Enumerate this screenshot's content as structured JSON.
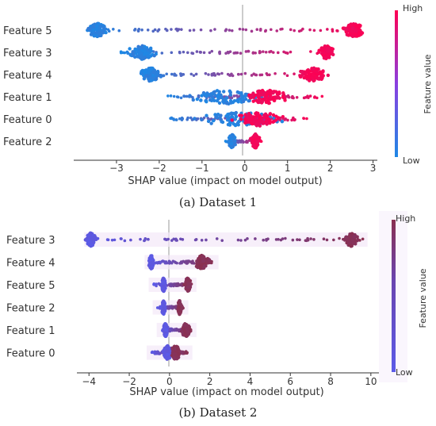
{
  "chart_data": [
    {
      "type": "scatter",
      "caption": "(a) Dataset 1",
      "xlabel": "SHAP value (impact on model output)",
      "xlim": [
        -4,
        3.1
      ],
      "xticks": [
        -3,
        -2,
        -1,
        0,
        1,
        2,
        3
      ],
      "colorbar": {
        "label": "Feature value",
        "high": "High",
        "low": "Low",
        "low_color": "#1e88e5",
        "high_color": "#ff0052"
      },
      "features": [
        {
          "name": "Feature 5",
          "low_center": -3.45,
          "low_spread": 0.25,
          "high_center": 2.55,
          "high_spread": 0.3,
          "span": [
            -3.6,
            2.8
          ]
        },
        {
          "name": "Feature 3",
          "low_center": -2.4,
          "low_spread": 0.4,
          "high_center": 1.9,
          "high_spread": 0.2,
          "span": [
            -2.9,
            2.0
          ]
        },
        {
          "name": "Feature 4",
          "low_center": -2.2,
          "low_spread": 0.3,
          "high_center": 1.6,
          "high_spread": 0.4,
          "span": [
            -2.4,
            1.8
          ]
        },
        {
          "name": "Feature 1",
          "low_center": -0.4,
          "low_spread": 1.2,
          "high_center": 0.5,
          "high_spread": 0.6,
          "span": [
            -1.85,
            1.9
          ]
        },
        {
          "name": "Feature 0",
          "low_center": -0.2,
          "low_spread": 1.2,
          "high_center": 0.35,
          "high_spread": 0.7,
          "span": [
            -1.85,
            1.55
          ]
        },
        {
          "name": "Feature 2",
          "low_center": -0.3,
          "low_spread": 0.1,
          "high_center": 0.25,
          "high_spread": 0.12,
          "span": [
            -0.45,
            0.4
          ]
        }
      ]
    },
    {
      "type": "scatter",
      "caption": "(b) Dataset 2",
      "xlabel": "SHAP value (impact on model output)",
      "xlim": [
        -4.6,
        10.4
      ],
      "xticks": [
        -4,
        -2,
        0,
        2,
        4,
        6,
        8,
        10
      ],
      "colorbar": {
        "label": "Feature value",
        "high": "High",
        "low": "Low",
        "low_color": "#5b5be8",
        "high_color": "#8a3050"
      },
      "features": [
        {
          "name": "Feature 3",
          "low_center": -3.9,
          "low_spread": 0.3,
          "high_center": 9.0,
          "high_spread": 0.4,
          "span": [
            -4.0,
            9.6
          ]
        },
        {
          "name": "Feature 4",
          "low_center": -0.9,
          "low_spread": 0.15,
          "high_center": 1.6,
          "high_spread": 0.5,
          "span": [
            -1.0,
            2.2
          ]
        },
        {
          "name": "Feature 5",
          "low_center": -0.3,
          "low_spread": 0.12,
          "high_center": 0.9,
          "high_spread": 0.2,
          "span": [
            -0.8,
            1.1
          ]
        },
        {
          "name": "Feature 2",
          "low_center": -0.3,
          "low_spread": 0.12,
          "high_center": 0.5,
          "high_spread": 0.12,
          "span": [
            -0.6,
            0.7
          ]
        },
        {
          "name": "Feature 1",
          "low_center": -0.2,
          "low_spread": 0.12,
          "high_center": 0.8,
          "high_spread": 0.25,
          "span": [
            -0.4,
            1.1
          ]
        },
        {
          "name": "Feature 0",
          "low_center": -0.1,
          "low_spread": 0.3,
          "high_center": 0.3,
          "high_spread": 0.3,
          "span": [
            -0.9,
            0.9
          ]
        }
      ]
    }
  ]
}
